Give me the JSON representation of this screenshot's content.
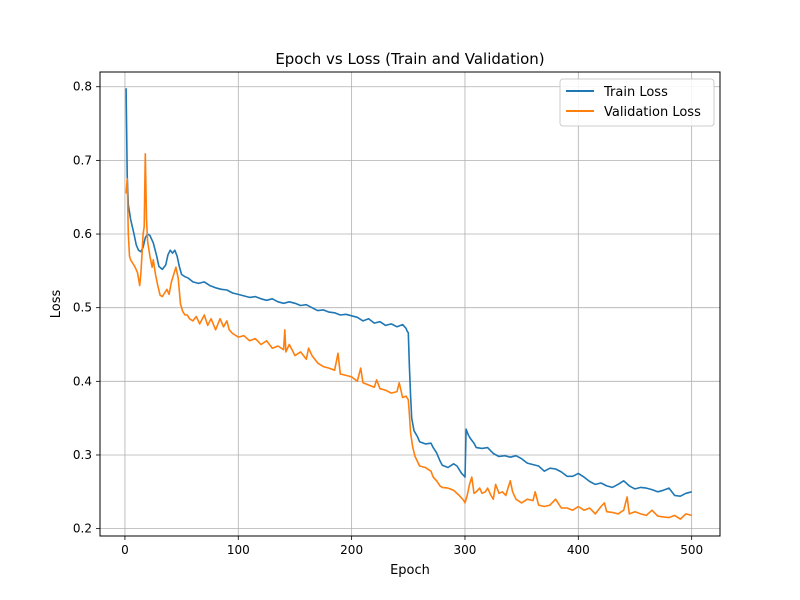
{
  "chart_data": {
    "type": "line",
    "title": "Epoch vs Loss (Train and Validation)",
    "xlabel": "Epoch",
    "ylabel": "Loss",
    "xlim": [
      -22,
      525
    ],
    "ylim": [
      0.19,
      0.82
    ],
    "x_ticks": [
      0,
      100,
      200,
      300,
      400,
      500
    ],
    "y_ticks": [
      0.2,
      0.3,
      0.4,
      0.5,
      0.6,
      0.7,
      0.8
    ],
    "grid": true,
    "legend_position": "top-right",
    "series": [
      {
        "name": "Train Loss",
        "color": "#1f77b4",
        "points": [
          [
            1,
            0.798
          ],
          [
            2,
            0.68
          ],
          [
            3,
            0.64
          ],
          [
            5,
            0.62
          ],
          [
            8,
            0.6
          ],
          [
            10,
            0.585
          ],
          [
            12,
            0.578
          ],
          [
            14,
            0.576
          ],
          [
            16,
            0.582
          ],
          [
            18,
            0.595
          ],
          [
            20,
            0.6
          ],
          [
            22,
            0.598
          ],
          [
            25,
            0.588
          ],
          [
            28,
            0.57
          ],
          [
            30,
            0.556
          ],
          [
            33,
            0.552
          ],
          [
            36,
            0.558
          ],
          [
            38,
            0.572
          ],
          [
            40,
            0.578
          ],
          [
            42,
            0.574
          ],
          [
            44,
            0.578
          ],
          [
            46,
            0.57
          ],
          [
            48,
            0.556
          ],
          [
            50,
            0.545
          ],
          [
            53,
            0.542
          ],
          [
            56,
            0.54
          ],
          [
            60,
            0.535
          ],
          [
            65,
            0.533
          ],
          [
            70,
            0.535
          ],
          [
            75,
            0.53
          ],
          [
            80,
            0.527
          ],
          [
            85,
            0.525
          ],
          [
            90,
            0.524
          ],
          [
            95,
            0.52
          ],
          [
            100,
            0.518
          ],
          [
            105,
            0.516
          ],
          [
            110,
            0.514
          ],
          [
            115,
            0.515
          ],
          [
            120,
            0.512
          ],
          [
            125,
            0.51
          ],
          [
            130,
            0.512
          ],
          [
            135,
            0.508
          ],
          [
            140,
            0.506
          ],
          [
            145,
            0.508
          ],
          [
            150,
            0.506
          ],
          [
            155,
            0.503
          ],
          [
            160,
            0.504
          ],
          [
            165,
            0.5
          ],
          [
            170,
            0.496
          ],
          [
            175,
            0.497
          ],
          [
            180,
            0.494
          ],
          [
            185,
            0.493
          ],
          [
            190,
            0.49
          ],
          [
            195,
            0.491
          ],
          [
            200,
            0.489
          ],
          [
            205,
            0.487
          ],
          [
            210,
            0.482
          ],
          [
            215,
            0.485
          ],
          [
            220,
            0.479
          ],
          [
            225,
            0.481
          ],
          [
            230,
            0.476
          ],
          [
            235,
            0.478
          ],
          [
            240,
            0.474
          ],
          [
            245,
            0.477
          ],
          [
            248,
            0.472
          ],
          [
            249,
            0.468
          ],
          [
            250,
            0.466
          ],
          [
            251,
            0.42
          ],
          [
            252,
            0.38
          ],
          [
            253,
            0.35
          ],
          [
            255,
            0.333
          ],
          [
            258,
            0.325
          ],
          [
            260,
            0.318
          ],
          [
            265,
            0.315
          ],
          [
            270,
            0.316
          ],
          [
            272,
            0.31
          ],
          [
            275,
            0.303
          ],
          [
            278,
            0.292
          ],
          [
            280,
            0.286
          ],
          [
            285,
            0.283
          ],
          [
            290,
            0.288
          ],
          [
            293,
            0.285
          ],
          [
            295,
            0.28
          ],
          [
            297,
            0.275
          ],
          [
            299,
            0.272
          ],
          [
            300,
            0.27
          ],
          [
            301,
            0.335
          ],
          [
            303,
            0.327
          ],
          [
            305,
            0.322
          ],
          [
            308,
            0.316
          ],
          [
            310,
            0.31
          ],
          [
            315,
            0.309
          ],
          [
            320,
            0.31
          ],
          [
            325,
            0.302
          ],
          [
            330,
            0.298
          ],
          [
            335,
            0.299
          ],
          [
            340,
            0.297
          ],
          [
            345,
            0.299
          ],
          [
            350,
            0.295
          ],
          [
            355,
            0.289
          ],
          [
            360,
            0.287
          ],
          [
            365,
            0.285
          ],
          [
            370,
            0.278
          ],
          [
            375,
            0.282
          ],
          [
            380,
            0.281
          ],
          [
            385,
            0.277
          ],
          [
            390,
            0.271
          ],
          [
            395,
            0.271
          ],
          [
            400,
            0.275
          ],
          [
            405,
            0.27
          ],
          [
            410,
            0.264
          ],
          [
            415,
            0.26
          ],
          [
            420,
            0.262
          ],
          [
            425,
            0.258
          ],
          [
            430,
            0.256
          ],
          [
            435,
            0.26
          ],
          [
            440,
            0.265
          ],
          [
            445,
            0.258
          ],
          [
            450,
            0.254
          ],
          [
            455,
            0.256
          ],
          [
            460,
            0.255
          ],
          [
            465,
            0.253
          ],
          [
            470,
            0.25
          ],
          [
            475,
            0.252
          ],
          [
            480,
            0.255
          ],
          [
            485,
            0.245
          ],
          [
            490,
            0.244
          ],
          [
            495,
            0.248
          ],
          [
            500,
            0.25
          ]
        ]
      },
      {
        "name": "Validation Loss",
        "color": "#ff7f0e",
        "points": [
          [
            1,
            0.655
          ],
          [
            2,
            0.675
          ],
          [
            3,
            0.6
          ],
          [
            4,
            0.57
          ],
          [
            5,
            0.565
          ],
          [
            7,
            0.56
          ],
          [
            9,
            0.555
          ],
          [
            11,
            0.548
          ],
          [
            12,
            0.54
          ],
          [
            13,
            0.53
          ],
          [
            14,
            0.545
          ],
          [
            15,
            0.57
          ],
          [
            16,
            0.6
          ],
          [
            17,
            0.61
          ],
          [
            18,
            0.709
          ],
          [
            19,
            0.62
          ],
          [
            20,
            0.59
          ],
          [
            22,
            0.57
          ],
          [
            24,
            0.555
          ],
          [
            25,
            0.565
          ],
          [
            27,
            0.545
          ],
          [
            29,
            0.53
          ],
          [
            31,
            0.517
          ],
          [
            33,
            0.515
          ],
          [
            35,
            0.52
          ],
          [
            37,
            0.525
          ],
          [
            39,
            0.518
          ],
          [
            41,
            0.535
          ],
          [
            43,
            0.545
          ],
          [
            45,
            0.555
          ],
          [
            47,
            0.54
          ],
          [
            49,
            0.505
          ],
          [
            51,
            0.495
          ],
          [
            53,
            0.49
          ],
          [
            55,
            0.49
          ],
          [
            57,
            0.485
          ],
          [
            60,
            0.482
          ],
          [
            63,
            0.488
          ],
          [
            66,
            0.478
          ],
          [
            70,
            0.49
          ],
          [
            73,
            0.476
          ],
          [
            76,
            0.485
          ],
          [
            80,
            0.47
          ],
          [
            84,
            0.485
          ],
          [
            87,
            0.474
          ],
          [
            90,
            0.482
          ],
          [
            92,
            0.47
          ],
          [
            95,
            0.465
          ],
          [
            100,
            0.46
          ],
          [
            105,
            0.462
          ],
          [
            110,
            0.455
          ],
          [
            115,
            0.458
          ],
          [
            120,
            0.45
          ],
          [
            125,
            0.455
          ],
          [
            130,
            0.445
          ],
          [
            135,
            0.448
          ],
          [
            140,
            0.443
          ],
          [
            141,
            0.47
          ],
          [
            142,
            0.44
          ],
          [
            145,
            0.45
          ],
          [
            150,
            0.435
          ],
          [
            155,
            0.44
          ],
          [
            160,
            0.43
          ],
          [
            162,
            0.445
          ],
          [
            165,
            0.435
          ],
          [
            170,
            0.425
          ],
          [
            175,
            0.42
          ],
          [
            180,
            0.418
          ],
          [
            185,
            0.415
          ],
          [
            188,
            0.438
          ],
          [
            190,
            0.41
          ],
          [
            195,
            0.408
          ],
          [
            200,
            0.406
          ],
          [
            205,
            0.4
          ],
          [
            208,
            0.418
          ],
          [
            210,
            0.398
          ],
          [
            215,
            0.395
          ],
          [
            220,
            0.392
          ],
          [
            222,
            0.402
          ],
          [
            225,
            0.39
          ],
          [
            230,
            0.388
          ],
          [
            235,
            0.384
          ],
          [
            240,
            0.386
          ],
          [
            242,
            0.398
          ],
          [
            245,
            0.378
          ],
          [
            248,
            0.38
          ],
          [
            250,
            0.375
          ],
          [
            251,
            0.355
          ],
          [
            252,
            0.33
          ],
          [
            254,
            0.31
          ],
          [
            256,
            0.298
          ],
          [
            260,
            0.285
          ],
          [
            265,
            0.283
          ],
          [
            268,
            0.28
          ],
          [
            270,
            0.278
          ],
          [
            272,
            0.27
          ],
          [
            275,
            0.265
          ],
          [
            278,
            0.258
          ],
          [
            280,
            0.256
          ],
          [
            285,
            0.255
          ],
          [
            290,
            0.252
          ],
          [
            295,
            0.245
          ],
          [
            299,
            0.238
          ],
          [
            300,
            0.235
          ],
          [
            302,
            0.245
          ],
          [
            304,
            0.26
          ],
          [
            306,
            0.27
          ],
          [
            308,
            0.248
          ],
          [
            310,
            0.25
          ],
          [
            313,
            0.255
          ],
          [
            315,
            0.248
          ],
          [
            318,
            0.25
          ],
          [
            320,
            0.255
          ],
          [
            323,
            0.245
          ],
          [
            325,
            0.24
          ],
          [
            327,
            0.26
          ],
          [
            330,
            0.248
          ],
          [
            333,
            0.25
          ],
          [
            336,
            0.245
          ],
          [
            338,
            0.255
          ],
          [
            340,
            0.265
          ],
          [
            342,
            0.25
          ],
          [
            345,
            0.24
          ],
          [
            350,
            0.235
          ],
          [
            355,
            0.24
          ],
          [
            360,
            0.238
          ],
          [
            362,
            0.25
          ],
          [
            365,
            0.232
          ],
          [
            370,
            0.23
          ],
          [
            375,
            0.232
          ],
          [
            380,
            0.24
          ],
          [
            385,
            0.228
          ],
          [
            390,
            0.228
          ],
          [
            395,
            0.225
          ],
          [
            400,
            0.23
          ],
          [
            405,
            0.225
          ],
          [
            410,
            0.228
          ],
          [
            415,
            0.22
          ],
          [
            420,
            0.23
          ],
          [
            423,
            0.235
          ],
          [
            425,
            0.223
          ],
          [
            430,
            0.222
          ],
          [
            435,
            0.22
          ],
          [
            440,
            0.225
          ],
          [
            443,
            0.243
          ],
          [
            445,
            0.22
          ],
          [
            450,
            0.223
          ],
          [
            455,
            0.22
          ],
          [
            460,
            0.218
          ],
          [
            465,
            0.225
          ],
          [
            470,
            0.217
          ],
          [
            475,
            0.216
          ],
          [
            480,
            0.215
          ],
          [
            485,
            0.218
          ],
          [
            490,
            0.213
          ],
          [
            495,
            0.22
          ],
          [
            500,
            0.218
          ]
        ]
      }
    ]
  }
}
